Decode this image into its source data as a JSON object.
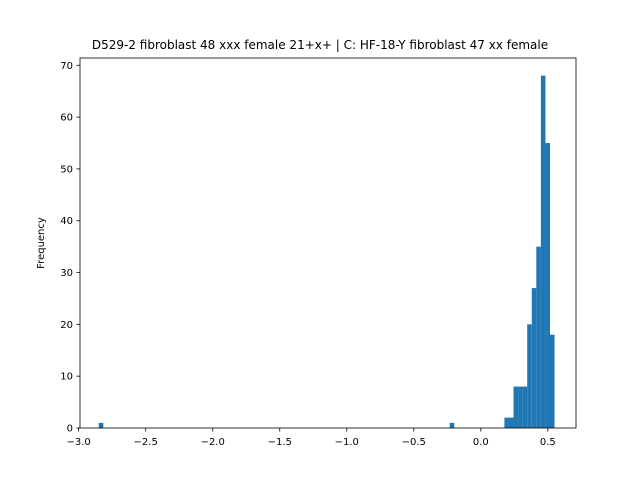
{
  "chart_data": {
    "type": "bar",
    "subtype": "histogram",
    "title": "D529-2 fibroblast 48 xxx female 21+x+ | C: HF-18-Y fibroblast 47 xx female",
    "xlabel": "",
    "ylabel": "Frequency",
    "xlim": [
      -2.99,
      0.71
    ],
    "ylim": [
      0,
      71.4
    ],
    "x_ticks": [
      -3.0,
      -2.5,
      -2.0,
      -1.5,
      -1.0,
      -0.5,
      0.0,
      0.5
    ],
    "x_tick_labels": [
      "−3.0",
      "−2.5",
      "−2.0",
      "−1.5",
      "−1.0",
      "−0.5",
      "0.0",
      "0.5"
    ],
    "y_ticks": [
      0,
      10,
      20,
      30,
      40,
      50,
      60,
      70
    ],
    "y_tick_labels": [
      "0",
      "10",
      "20",
      "30",
      "40",
      "50",
      "60",
      "70"
    ],
    "bin_range": [
      -2.85,
      0.55
    ],
    "counts": [
      1,
      0,
      0,
      0,
      0,
      0,
      0,
      0,
      0,
      0,
      0,
      0,
      0,
      0,
      0,
      0,
      0,
      0,
      0,
      0,
      0,
      0,
      0,
      0,
      0,
      0,
      0,
      0,
      0,
      0,
      0,
      0,
      0,
      0,
      0,
      0,
      0,
      0,
      0,
      0,
      0,
      0,
      0,
      0,
      0,
      0,
      0,
      0,
      0,
      0,
      0,
      0,
      0,
      0,
      0,
      0,
      0,
      0,
      0,
      0,
      0,
      0,
      0,
      0,
      0,
      0,
      0,
      0,
      0,
      0,
      0,
      0,
      0,
      0,
      0,
      0,
      0,
      1,
      0,
      0,
      0,
      0,
      0,
      0,
      0,
      0,
      0,
      0,
      0,
      2,
      2,
      8,
      8,
      8,
      20,
      27,
      35,
      68,
      55,
      18
    ],
    "bar_color": "#1f77b4",
    "grid": false,
    "legend": "none"
  }
}
